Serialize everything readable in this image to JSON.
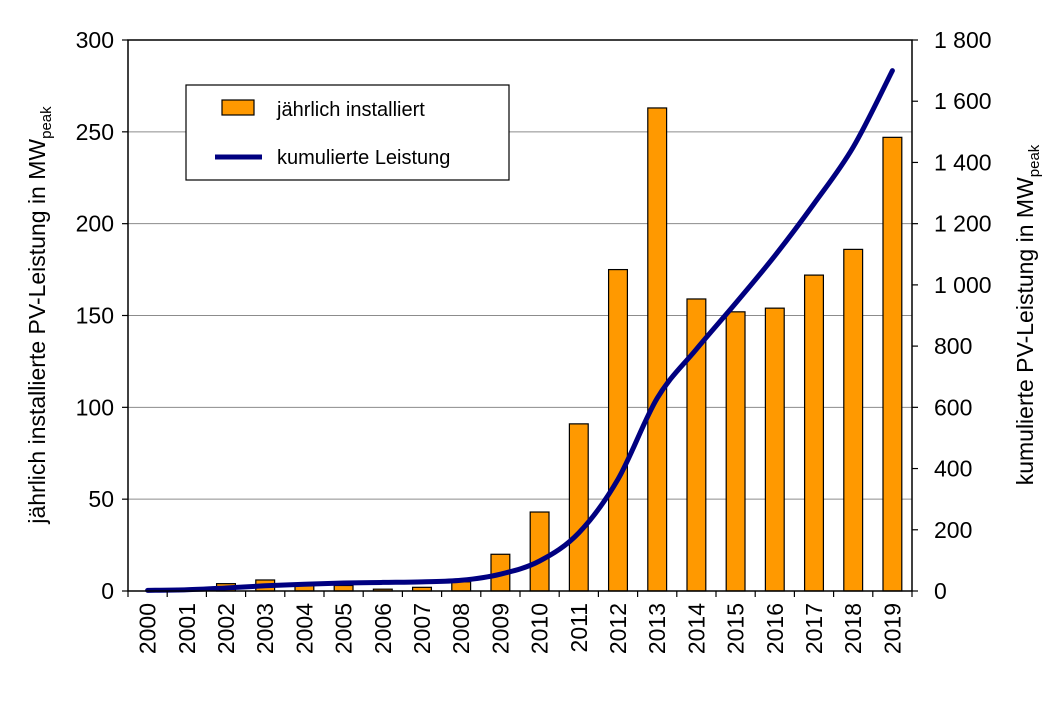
{
  "chart_data": {
    "type": "bar+line",
    "categories": [
      "2000",
      "2001",
      "2002",
      "2003",
      "2004",
      "2005",
      "2006",
      "2007",
      "2008",
      "2009",
      "2010",
      "2011",
      "2012",
      "2013",
      "2014",
      "2015",
      "2016",
      "2017",
      "2018",
      "2019"
    ],
    "series": [
      {
        "name": "jährlich installiert",
        "type": "bar",
        "axis": "left",
        "color": "#FF9900",
        "values": [
          0,
          0,
          4,
          6,
          3,
          3,
          1,
          2,
          5,
          20,
          43,
          91,
          175,
          263,
          159,
          152,
          154,
          172,
          186,
          247
        ]
      },
      {
        "name": "kumulierte Leistung",
        "type": "line",
        "axis": "right",
        "color": "#000080",
        "values": [
          2,
          4,
          10,
          17,
          22,
          26,
          28,
          30,
          35,
          55,
          98,
          190,
          365,
          630,
          790,
          940,
          1095,
          1265,
          1450,
          1700
        ]
      }
    ],
    "y_left": {
      "label_main": "jährlich installierte PV-Leistung in MW",
      "label_sub": "peak",
      "min": 0,
      "max": 300,
      "ticks": [
        0,
        50,
        100,
        150,
        200,
        250,
        300
      ],
      "tick_labels": [
        "0",
        "50",
        "100",
        "150",
        "200",
        "250",
        "300"
      ]
    },
    "y_right": {
      "label_main": "kumulierte PV-Leistung in MW",
      "label_sub": "peak",
      "min": 0,
      "max": 1800,
      "ticks": [
        0,
        200,
        400,
        600,
        800,
        1000,
        1200,
        1400,
        1600,
        1800
      ],
      "tick_labels": [
        "0",
        "200",
        "400",
        "600",
        "800",
        "1 000",
        "1 200",
        "1 400",
        "1 600",
        "1 800"
      ]
    },
    "grid": true,
    "legend_position": "top-left"
  }
}
